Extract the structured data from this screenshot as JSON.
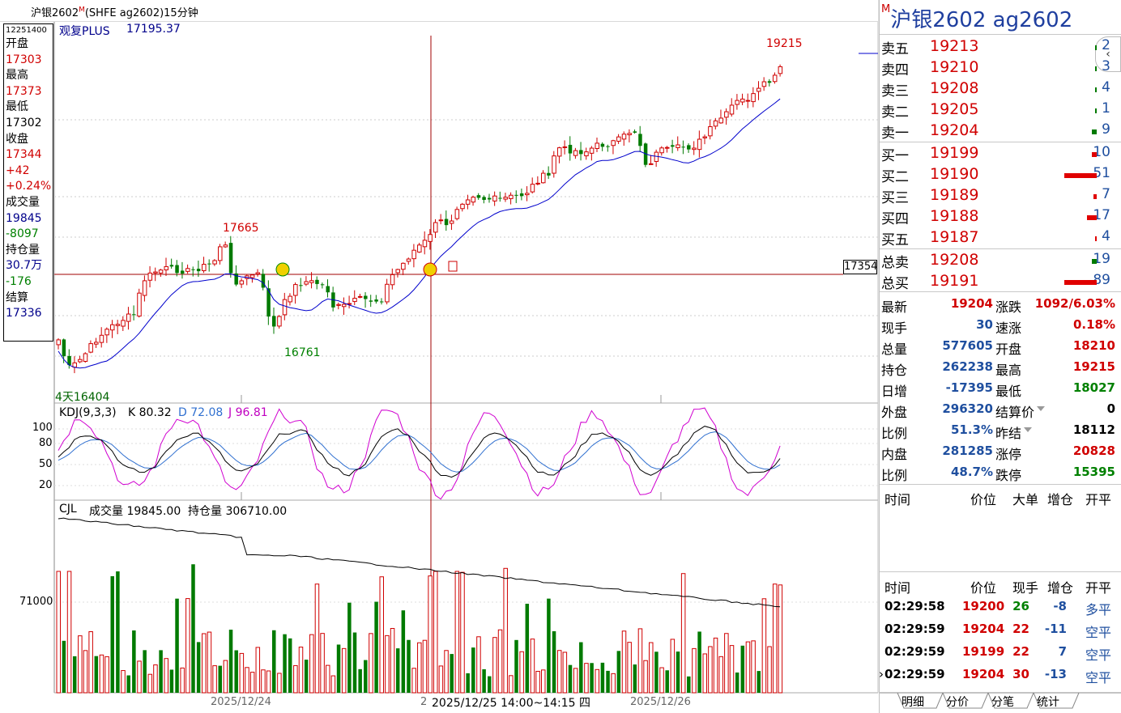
{
  "window": {
    "title": "沪银2602",
    "title_mark": "M",
    "title_rest": "(SHFE ag2602)15分钟"
  },
  "info_box": {
    "code": "12251400",
    "open_label": "开盘",
    "open": "17303",
    "high_label": "最高",
    "high": "17373",
    "low_label": "最低",
    "low": "17302",
    "close_label": "收盘",
    "close": "17344",
    "change": "+42",
    "change_pct": "+0.24%",
    "volume_label": "成交量",
    "volume": "19845",
    "volume_change": "-8097",
    "oi_label": "持仓量",
    "oi": "30.7万",
    "oi_change": "-176",
    "settle_label": "结算",
    "settle": "17336"
  },
  "main_chart": {
    "indicator": "观复PLUS",
    "indicator_value": "17195.37",
    "label_high": "19215",
    "label_peak": "17665",
    "label_trough": "16761",
    "label_low": "4天16404",
    "crosshair_price": "17354",
    "icon_smile": "☺",
    "icon_marker": "B"
  },
  "kdj": {
    "name": "KDJ(9,3,3)",
    "k_label": "K 80.32",
    "d_label": "D 72.08",
    "j_label": "J 96.81",
    "ticks": [
      "100",
      "80",
      "50",
      "20"
    ]
  },
  "volume_panel": {
    "name": "CJL",
    "vol_label": "成交量 19845.00",
    "oi_label": "持仓量 306710.00",
    "tick": "71000"
  },
  "dates": {
    "d1": "2025/12/24",
    "d2": "2025/12/25 14:00~14:15 四",
    "d2_prefix": "2",
    "d3": "2025/12/26"
  },
  "right_panel": {
    "title_mark": "M",
    "title": "沪银2602  ag2602",
    "asks": [
      {
        "label": "卖五",
        "price": "19213",
        "vol": "2"
      },
      {
        "label": "卖四",
        "price": "19210",
        "vol": "3"
      },
      {
        "label": "卖三",
        "price": "19208",
        "vol": "4"
      },
      {
        "label": "卖二",
        "price": "19205",
        "vol": "1"
      },
      {
        "label": "卖一",
        "price": "19204",
        "vol": "9"
      }
    ],
    "bids": [
      {
        "label": "买一",
        "price": "19199",
        "vol": "10"
      },
      {
        "label": "买二",
        "price": "19190",
        "vol": "51"
      },
      {
        "label": "买三",
        "price": "19189",
        "vol": "7"
      },
      {
        "label": "买四",
        "price": "19188",
        "vol": "17"
      },
      {
        "label": "买五",
        "price": "19187",
        "vol": "4"
      }
    ],
    "totals": [
      {
        "label": "总卖",
        "price": "19208",
        "vol": "19"
      },
      {
        "label": "总买",
        "price": "19191",
        "vol": "89"
      }
    ],
    "stats": [
      {
        "l1": "最新",
        "v1": "19204",
        "l2": "涨跌",
        "v2": "1092/6.03%"
      },
      {
        "l1": "现手",
        "v1": "30",
        "l2": "速涨",
        "v2": "0.18%"
      },
      {
        "l1": "总量",
        "v1": "577605",
        "l2": "开盘",
        "v2": "18210"
      },
      {
        "l1": "持仓",
        "v1": "262238",
        "l2": "最高",
        "v2": "19215"
      },
      {
        "l1": "日增",
        "v1": "-17395",
        "l2": "最低",
        "v2": "18027"
      },
      {
        "l1": "外盘",
        "v1": "296320",
        "l2": "结算价",
        "v2": "0"
      },
      {
        "l1": "比例",
        "v1": "51.3%",
        "l2": "昨结",
        "v2": "18112"
      },
      {
        "l1": "内盘",
        "v1": "281285",
        "l2": "涨停",
        "v2": "20828"
      },
      {
        "l1": "比例",
        "v1": "48.7%",
        "l2": "跌停",
        "v2": "15395"
      }
    ],
    "sec1_headers": [
      "时间",
      "价位",
      "大单",
      "增仓",
      "开平"
    ],
    "sec2_headers": [
      "时间",
      "价位",
      "现手",
      "增仓",
      "开平"
    ],
    "trades": [
      {
        "time": "02:29:58",
        "price": "19200",
        "vol": "26",
        "oi": "-8",
        "type": "多平"
      },
      {
        "time": "02:29:59",
        "price": "19204",
        "vol": "22",
        "oi": "-11",
        "type": "空平"
      },
      {
        "time": "02:29:59",
        "price": "19199",
        "vol": "22",
        "oi": "7",
        "type": "空平"
      },
      {
        "time": "02:29:59",
        "price": "19204",
        "vol": "30",
        "oi": "-13",
        "type": "空平"
      }
    ],
    "tabs": [
      "明细",
      "分价",
      "分笔",
      "统计"
    ]
  },
  "colors": {
    "up": "#d00000",
    "down": "#007a00",
    "ma": "#0000cc",
    "k": "#000000",
    "d": "#3070d0",
    "j": "#d000d0"
  }
}
